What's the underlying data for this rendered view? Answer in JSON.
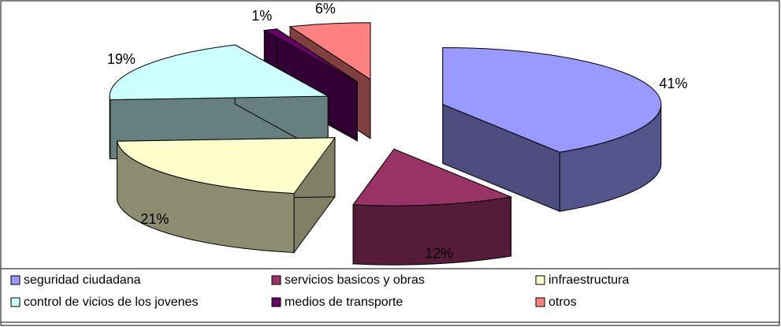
{
  "chart_data": {
    "type": "pie3d",
    "categories": [
      "seguridad ciudadana",
      "servicios basicos y obras",
      "infraestructura",
      "control de vicios de los jovenes",
      "medios de transporte",
      "otros"
    ],
    "values": [
      41,
      12,
      21,
      19,
      1,
      6
    ],
    "value_labels": [
      "41%",
      "12%",
      "21%",
      "19%",
      "1%",
      "6%"
    ],
    "colors": [
      "#9999ff",
      "#993366",
      "#ffffcc",
      "#ccffff",
      "#660066",
      "#ff8080"
    ],
    "legend": "bottom"
  }
}
